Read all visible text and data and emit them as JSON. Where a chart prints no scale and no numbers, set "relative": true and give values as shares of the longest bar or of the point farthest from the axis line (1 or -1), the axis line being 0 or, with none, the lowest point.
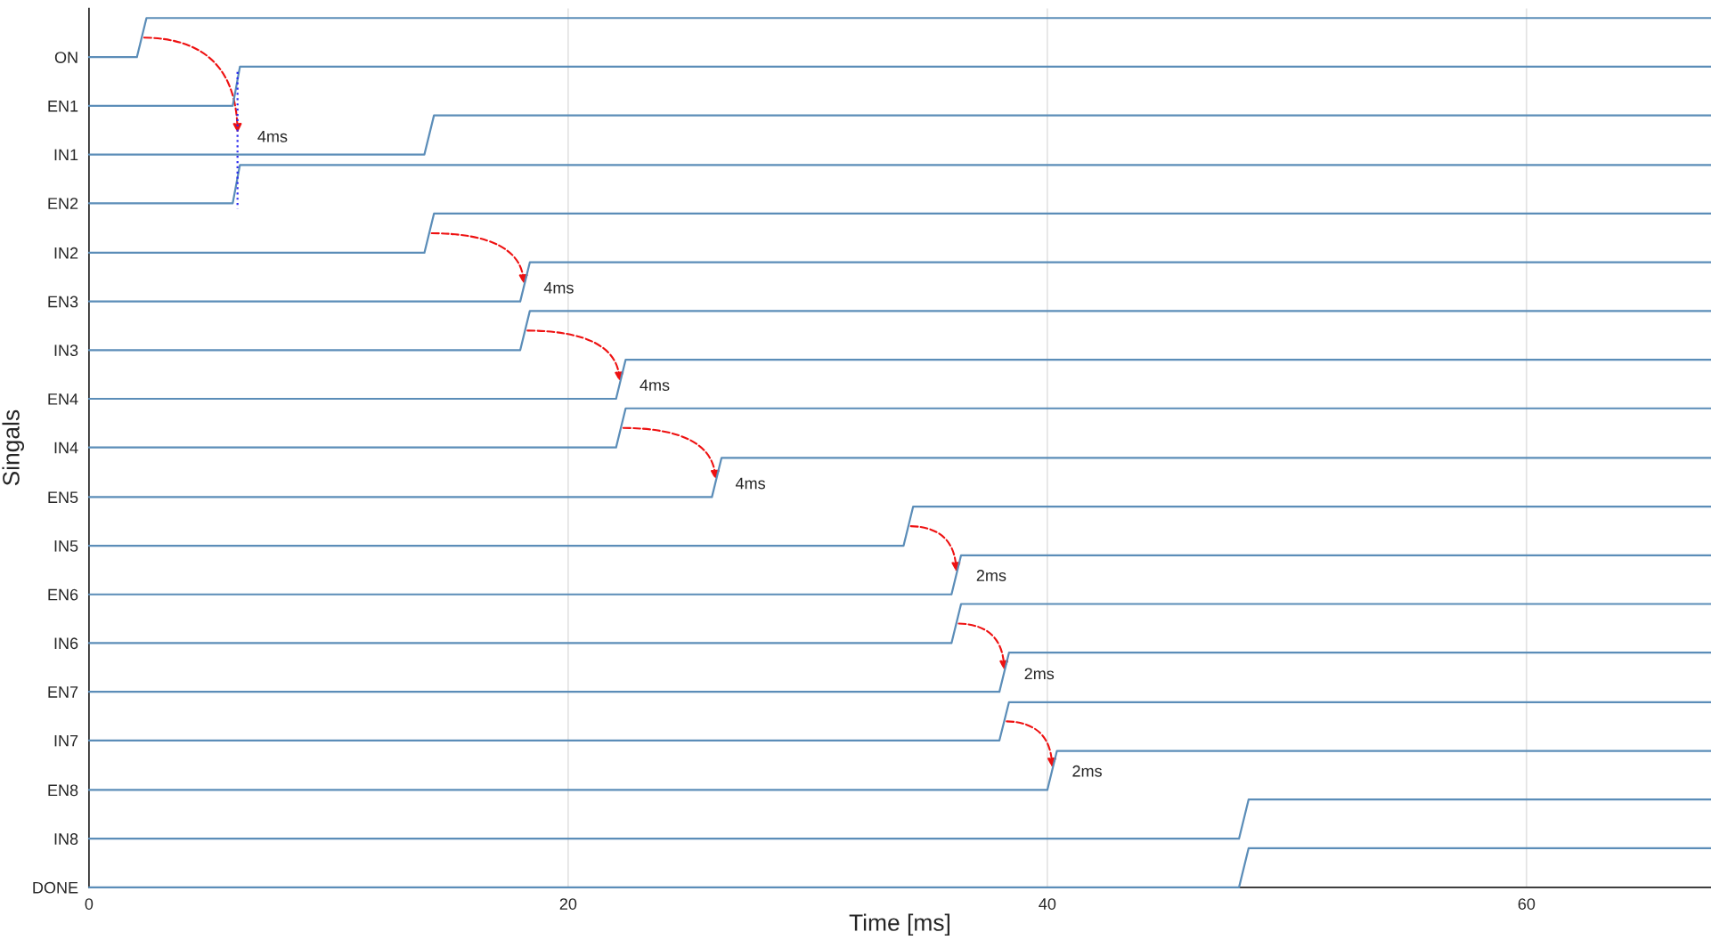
{
  "chart_data": {
    "type": "line",
    "xlabel": "Time [ms]",
    "ylabel": "Singals",
    "relative": true,
    "xlim": [
      0,
      67.7
    ],
    "xticks": [
      0,
      20,
      40,
      60
    ],
    "grid": "x",
    "marker": "none",
    "line_style": "solid",
    "series": [
      {
        "name": "ON",
        "color": "#5b8db8",
        "x": [
          0,
          2,
          2.4,
          67.7
        ],
        "values": [
          0.955,
          0.955,
          1,
          1
        ]
      },
      {
        "name": "EN1",
        "color": "#5b8db8",
        "x": [
          0,
          6,
          6.3,
          67.7
        ],
        "values": [
          0.899,
          0.899,
          0.944,
          0.944
        ]
      },
      {
        "name": "IN1",
        "color": "#5b8db8",
        "x": [
          0,
          14,
          14.4,
          67.7
        ],
        "values": [
          0.843,
          0.843,
          0.888,
          0.888
        ]
      },
      {
        "name": "EN2",
        "color": "#5b8db8",
        "x": [
          0,
          6,
          6.3,
          67.7
        ],
        "values": [
          0.787,
          0.787,
          0.831,
          0.831
        ]
      },
      {
        "name": "IN2",
        "color": "#5b8db8",
        "x": [
          0,
          14,
          14.4,
          67.7
        ],
        "values": [
          0.73,
          0.73,
          0.775,
          0.775
        ]
      },
      {
        "name": "EN3",
        "color": "#5b8db8",
        "x": [
          0,
          18,
          18.4,
          67.7
        ],
        "values": [
          0.674,
          0.674,
          0.719,
          0.719
        ]
      },
      {
        "name": "IN3",
        "color": "#5b8db8",
        "x": [
          0,
          18,
          18.4,
          67.7
        ],
        "values": [
          0.618,
          0.618,
          0.663,
          0.663
        ]
      },
      {
        "name": "EN4",
        "color": "#5b8db8",
        "x": [
          0,
          22,
          22.4,
          67.7
        ],
        "values": [
          0.562,
          0.562,
          0.607,
          0.607
        ]
      },
      {
        "name": "IN4",
        "color": "#5b8db8",
        "x": [
          0,
          22,
          22.4,
          67.7
        ],
        "values": [
          0.506,
          0.506,
          0.551,
          0.551
        ]
      },
      {
        "name": "EN5",
        "color": "#5b8db8",
        "x": [
          0,
          26,
          26.4,
          67.7
        ],
        "values": [
          0.449,
          0.449,
          0.494,
          0.494
        ]
      },
      {
        "name": "IN5",
        "color": "#5b8db8",
        "x": [
          0,
          34,
          34.4,
          67.7
        ],
        "values": [
          0.393,
          0.393,
          0.438,
          0.438
        ]
      },
      {
        "name": "EN6",
        "color": "#5b8db8",
        "x": [
          0,
          36,
          36.4,
          67.7
        ],
        "values": [
          0.337,
          0.337,
          0.382,
          0.382
        ]
      },
      {
        "name": "IN6",
        "color": "#5b8db8",
        "x": [
          0,
          36,
          36.4,
          67.7
        ],
        "values": [
          0.281,
          0.281,
          0.326,
          0.326
        ]
      },
      {
        "name": "EN7",
        "color": "#5b8db8",
        "x": [
          0,
          38,
          38.4,
          67.7
        ],
        "values": [
          0.225,
          0.225,
          0.27,
          0.27
        ]
      },
      {
        "name": "IN7",
        "color": "#5b8db8",
        "x": [
          0,
          38,
          38.4,
          67.7
        ],
        "values": [
          0.169,
          0.169,
          0.213,
          0.213
        ]
      },
      {
        "name": "EN8",
        "color": "#5b8db8",
        "x": [
          0,
          40,
          40.4,
          67.7
        ],
        "values": [
          0.112,
          0.112,
          0.157,
          0.157
        ]
      },
      {
        "name": "IN8",
        "color": "#5b8db8",
        "x": [
          0,
          48,
          48.4,
          67.7
        ],
        "values": [
          0.056,
          0.056,
          0.101,
          0.101
        ]
      },
      {
        "name": "DONE",
        "color": "#5b8db8",
        "x": [
          0,
          48,
          48.4,
          67.7
        ],
        "values": [
          0,
          0,
          0.045,
          0.045
        ]
      },
      {
        "color": "#2b2bf0",
        "line_style": "dotted",
        "x": [
          6.2,
          6.2
        ],
        "values": [
          0.938,
          0.781
        ]
      }
    ],
    "annotations": [
      {
        "text": "4ms",
        "x": 6.2,
        "y": 0.865
      },
      {
        "text": "4ms",
        "x": 18.15,
        "y": 0.691
      },
      {
        "text": "4ms",
        "x": 22.15,
        "y": 0.579
      },
      {
        "text": "4ms",
        "x": 26.15,
        "y": 0.466
      },
      {
        "text": "2ms",
        "x": 36.2,
        "y": 0.36
      },
      {
        "text": "2ms",
        "x": 38.2,
        "y": 0.247
      },
      {
        "text": "2ms",
        "x": 40.2,
        "y": 0.135
      }
    ]
  }
}
